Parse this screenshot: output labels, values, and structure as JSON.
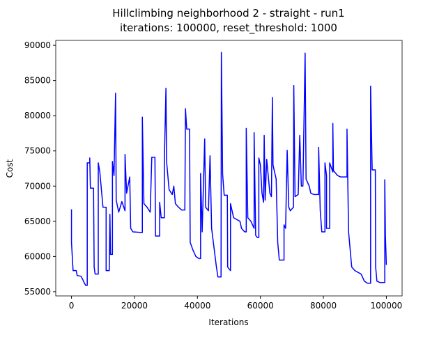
{
  "chart_data": {
    "type": "line",
    "title": "Hillclimbing neighborhood 2 - straight - run1",
    "subtitle": "iterations: 100000, reset_threshold: 1000",
    "x_label": "Iterations",
    "y_label": "Cost",
    "xlim": [
      -5000,
      105000
    ],
    "ylim": [
      54400,
      90700
    ],
    "xticks": [
      0,
      20000,
      40000,
      60000,
      80000,
      100000
    ],
    "yticks": [
      55000,
      60000,
      65000,
      70000,
      75000,
      80000,
      85000,
      90000
    ],
    "grid": false,
    "series": [
      {
        "color": "#0000ff",
        "x": [
          0,
          0,
          500,
          1500,
          1800,
          3000,
          3500,
          4000,
          4500,
          5000,
          5000,
          5800,
          5800,
          6000,
          7000,
          7200,
          7500,
          8500,
          8500,
          9000,
          9500,
          10000,
          11000,
          11000,
          12000,
          12200,
          12400,
          13000,
          13000,
          13500,
          14000,
          14200,
          15000,
          16000,
          17000,
          17000,
          17500,
          18500,
          18800,
          19500,
          22500,
          22500,
          23000,
          24000,
          25000,
          25500,
          26500,
          26700,
          28000,
          28000,
          28500,
          29500,
          29500,
          30000,
          30200,
          31000,
          32000,
          32500,
          33000,
          34000,
          35000,
          36000,
          36200,
          36600,
          37500,
          37700,
          38500,
          39500,
          40500,
          41000,
          41000,
          41500,
          42300,
          42600,
          43500,
          44000,
          44500,
          46000,
          46500,
          47500,
          47600,
          48000,
          48500,
          49500,
          49600,
          50500,
          50500,
          51500,
          53500,
          54000,
          55000,
          55500,
          55500,
          56000,
          57000,
          58000,
          58000,
          58500,
          59000,
          59500,
          59500,
          60000,
          60500,
          61000,
          61200,
          61500,
          62000,
          63000,
          63500,
          63800,
          64000,
          65000,
          65500,
          66000,
          67500,
          67500,
          68000,
          68500,
          69000,
          69500,
          70500,
          70600,
          71000,
          72000,
          72500,
          73000,
          73500,
          74200,
          74500,
          75500,
          76000,
          77000,
          78500,
          78500,
          79000,
          79500,
          80500,
          80500,
          81000,
          81000,
          82000,
          82000,
          83000,
          83000,
          83200,
          84500,
          85500,
          87500,
          87500,
          88000,
          89000,
          90000,
          92000,
          93000,
          94000,
          95000,
          95000,
          95500,
          96500,
          96600,
          97000,
          98000,
          99500,
          99500,
          99700,
          100000
        ],
        "values": [
          66700,
          62000,
          58000,
          58000,
          57300,
          57200,
          56800,
          56300,
          55900,
          55900,
          73300,
          73300,
          74000,
          69700,
          69700,
          58500,
          57500,
          57500,
          73300,
          72000,
          69500,
          67000,
          67000,
          58000,
          58000,
          66000,
          60300,
          60300,
          73500,
          71500,
          83200,
          68000,
          66300,
          67800,
          66500,
          74500,
          69000,
          71300,
          64000,
          63500,
          63400,
          79800,
          67500,
          67000,
          66300,
          74100,
          74100,
          62900,
          62900,
          67700,
          65500,
          65500,
          73700,
          83900,
          73500,
          69500,
          68800,
          70000,
          67500,
          67000,
          66600,
          66600,
          81000,
          78100,
          78100,
          62000,
          61000,
          60000,
          59700,
          59700,
          71800,
          63500,
          76700,
          67000,
          66500,
          74300,
          64000,
          58600,
          57100,
          57100,
          89000,
          71700,
          68700,
          68700,
          58500,
          58000,
          67500,
          65500,
          65000,
          64000,
          63500,
          63500,
          78200,
          65500,
          65000,
          64000,
          77600,
          63000,
          62700,
          62700,
          74000,
          73000,
          69000,
          67700,
          77200,
          68000,
          73800,
          69000,
          68500,
          82600,
          73000,
          71000,
          62000,
          59500,
          59500,
          64500,
          64000,
          75100,
          67000,
          66500,
          67000,
          84300,
          68500,
          68800,
          77200,
          70000,
          70000,
          88900,
          71000,
          70000,
          69000,
          68800,
          68800,
          75500,
          66500,
          63500,
          63500,
          73300,
          71500,
          64000,
          64000,
          73300,
          72000,
          78900,
          72200,
          71500,
          71300,
          71300,
          78100,
          63500,
          58500,
          58000,
          57500,
          56500,
          56200,
          56200,
          84200,
          72300,
          72300,
          58500,
          56500,
          56300,
          56300,
          70900,
          63000,
          58800
        ]
      }
    ]
  }
}
